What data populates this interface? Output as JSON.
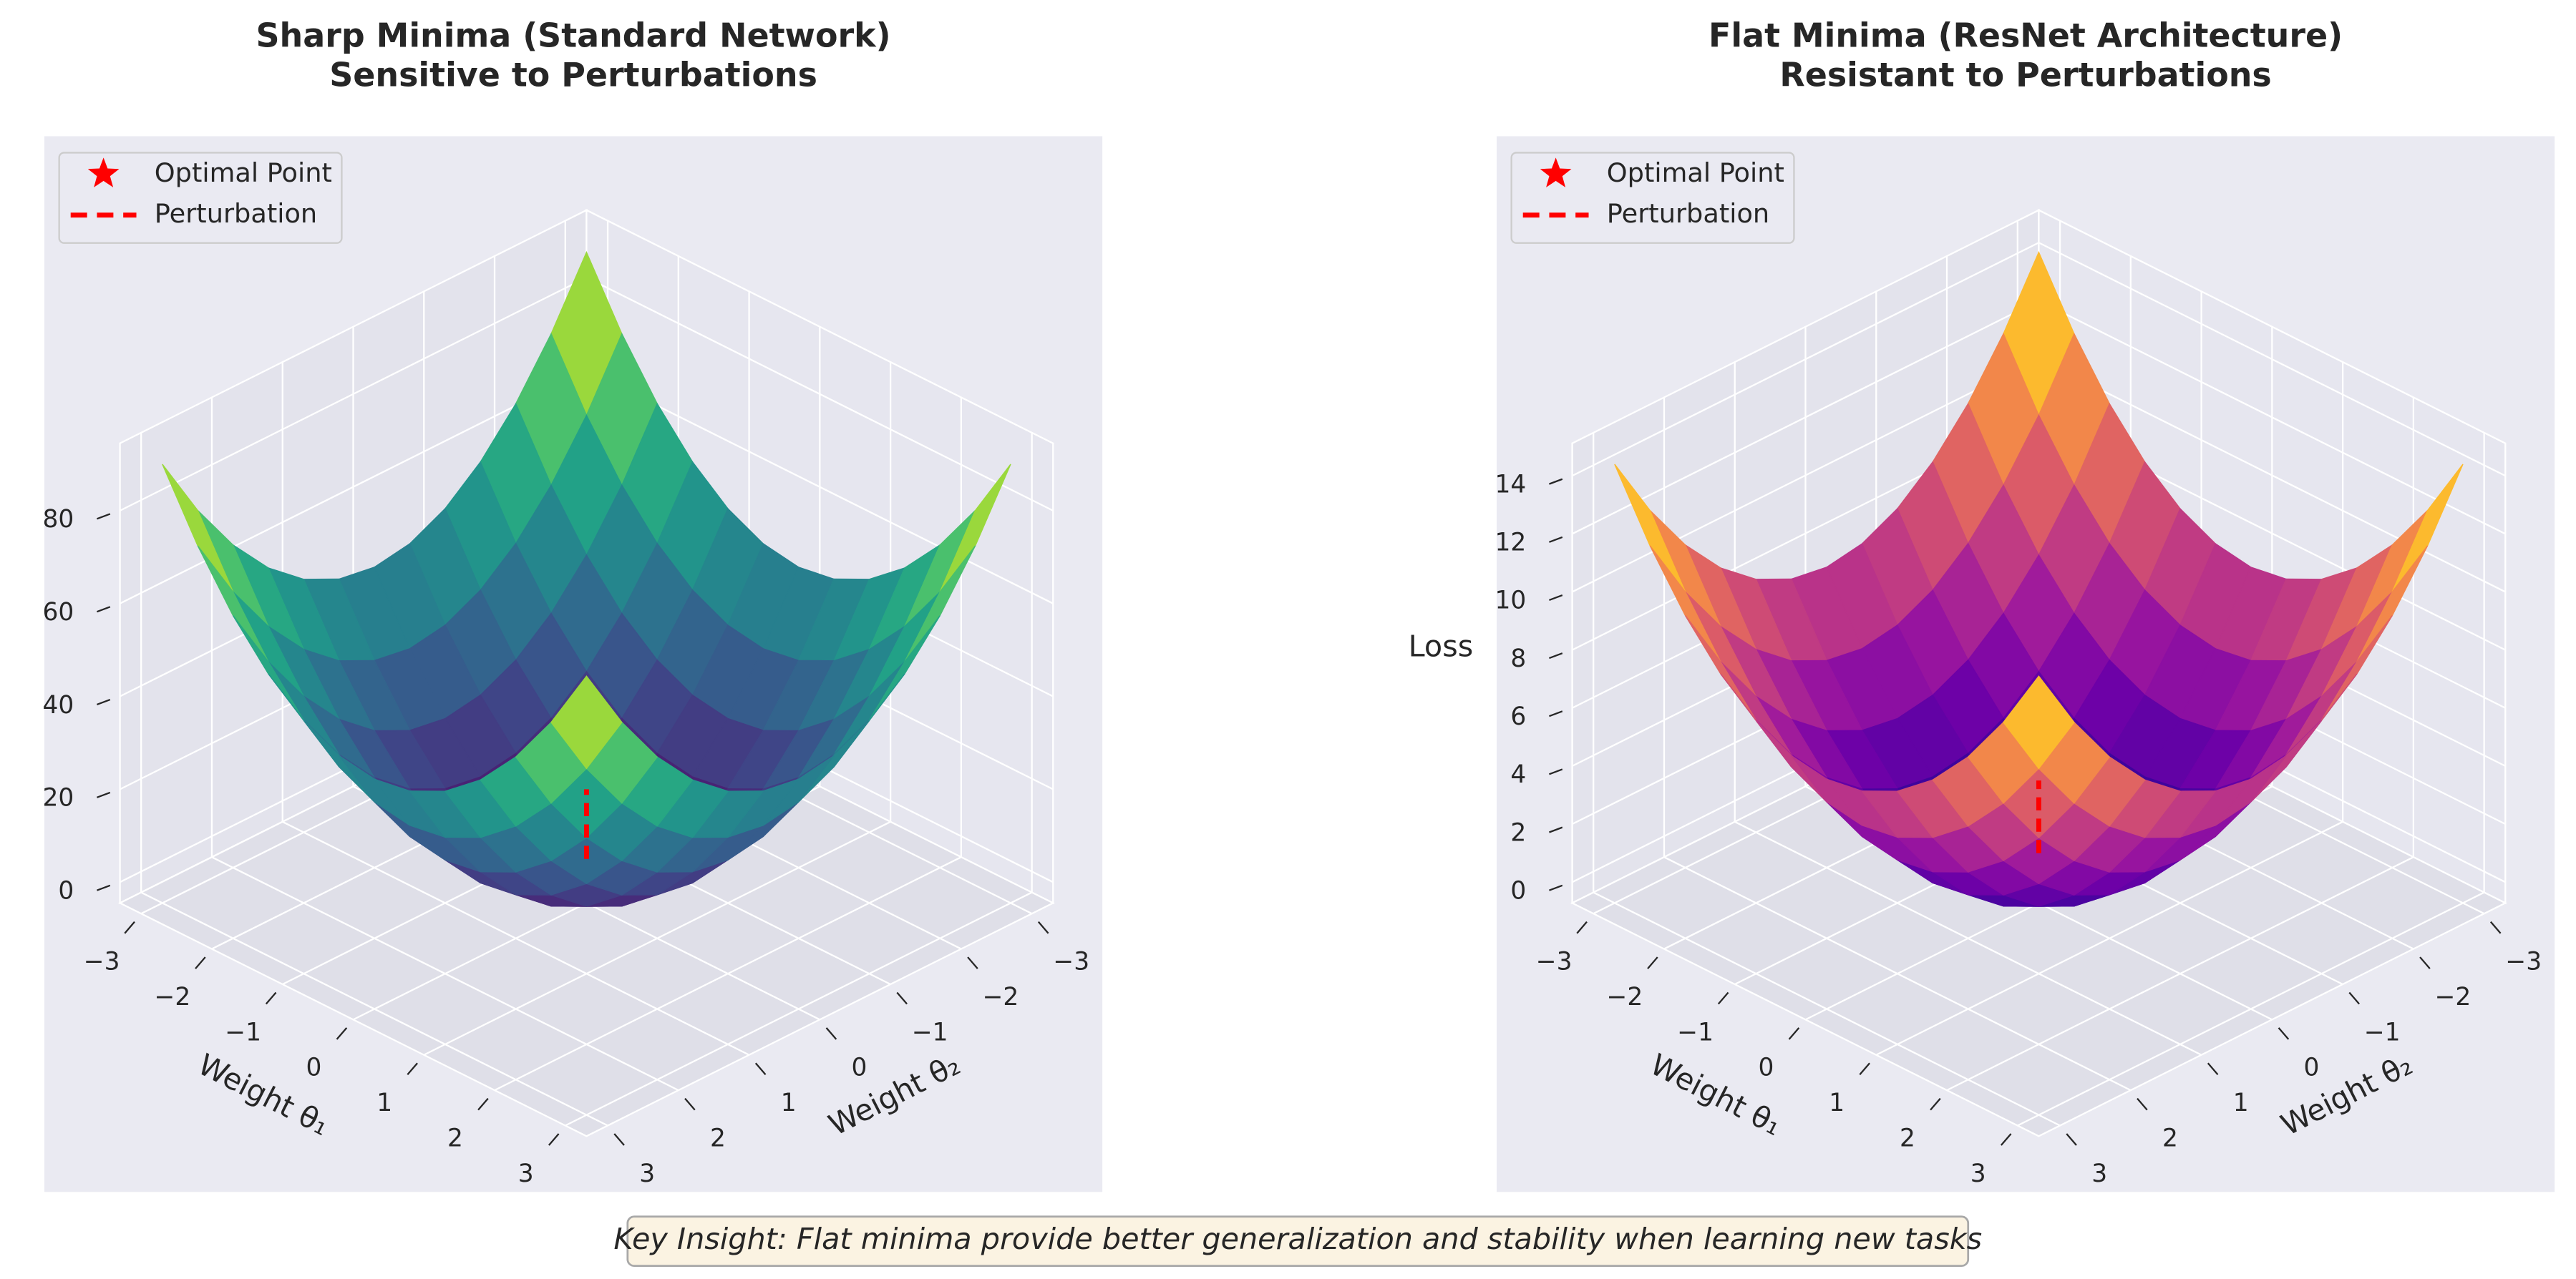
{
  "chart_data": [
    {
      "type": "surface",
      "colormap": "viridis",
      "title": [
        "Sharp Minima (Standard Network)",
        "Sensitive to Perturbations"
      ],
      "xlabel": "Weight θ₁",
      "ylabel": "Weight θ₂",
      "x": [
        -3,
        -2.5,
        -2,
        -1.5,
        -1,
        -0.5,
        0,
        0.5,
        1,
        1.5,
        2,
        2.5,
        3
      ],
      "y": [
        -3,
        -2.5,
        -2,
        -1.5,
        -1,
        -0.5,
        0,
        0.5,
        1,
        1.5,
        2,
        2.5,
        3
      ],
      "z": [
        [
          90,
          76.25,
          65,
          56.25,
          50,
          46.25,
          45,
          46.25,
          50,
          56.25,
          65,
          76.25,
          90
        ],
        [
          76.25,
          62.5,
          51.25,
          42.5,
          36.25,
          32.5,
          31.25,
          32.5,
          36.25,
          42.5,
          51.25,
          62.5,
          76.25
        ],
        [
          65,
          51.25,
          40,
          31.25,
          25,
          21.25,
          20,
          21.25,
          25,
          31.25,
          40,
          51.25,
          65
        ],
        [
          56.25,
          42.5,
          31.25,
          22.5,
          16.25,
          12.5,
          11.25,
          12.5,
          16.25,
          22.5,
          31.25,
          42.5,
          56.25
        ],
        [
          50,
          36.25,
          25,
          16.25,
          10,
          6.25,
          5,
          6.25,
          10,
          16.25,
          25,
          36.25,
          50
        ],
        [
          46.25,
          32.5,
          21.25,
          12.5,
          6.25,
          2.5,
          1.25,
          2.5,
          6.25,
          12.5,
          21.25,
          32.5,
          46.25
        ],
        [
          45,
          31.25,
          20,
          11.25,
          5,
          1.25,
          0,
          1.25,
          5,
          11.25,
          20,
          31.25,
          45
        ],
        [
          46.25,
          32.5,
          21.25,
          12.5,
          6.25,
          2.5,
          1.25,
          2.5,
          6.25,
          12.5,
          21.25,
          32.5,
          46.25
        ],
        [
          50,
          36.25,
          25,
          16.25,
          10,
          6.25,
          5,
          6.25,
          10,
          16.25,
          25,
          36.25,
          50
        ],
        [
          56.25,
          42.5,
          31.25,
          22.5,
          16.25,
          12.5,
          11.25,
          12.5,
          16.25,
          22.5,
          31.25,
          42.5,
          56.25
        ],
        [
          65,
          51.25,
          40,
          31.25,
          25,
          21.25,
          20,
          21.25,
          25,
          31.25,
          40,
          51.25,
          65
        ],
        [
          76.25,
          62.5,
          51.25,
          42.5,
          36.25,
          32.5,
          31.25,
          32.5,
          36.25,
          42.5,
          51.25,
          62.5,
          76.25
        ],
        [
          90,
          76.25,
          65,
          56.25,
          50,
          46.25,
          45,
          46.25,
          50,
          56.25,
          65,
          76.25,
          90
        ]
      ],
      "series": [
        {
          "name": "Optimal Point",
          "color": "#ff0000",
          "marker": "star",
          "x": [
            0
          ],
          "y": [
            0
          ],
          "z": [
            0
          ]
        },
        {
          "name": "Perturbation",
          "color": "#ff0000",
          "linestyle": "dashed",
          "x": [
            0,
            0
          ],
          "y": [
            0,
            0
          ],
          "z": [
            5,
            20
          ]
        }
      ],
      "legend": "upper left",
      "xlim": [
        -3.3,
        3.3
      ],
      "ylim": [
        -3.3,
        3.3
      ],
      "zlim": [
        -4.5,
        94.5
      ],
      "xticks": [
        {
          "value": -3,
          "label": "−3"
        },
        {
          "value": -2,
          "label": "−2"
        },
        {
          "value": -1,
          "label": "−1"
        },
        0,
        1,
        2,
        3
      ],
      "yticks": [
        {
          "value": -3,
          "label": "−3"
        },
        {
          "value": -2,
          "label": "−2"
        },
        {
          "value": -1,
          "label": "−1"
        },
        0,
        1,
        2,
        3
      ],
      "zticks": [
        0,
        20,
        40,
        60,
        80
      ]
    },
    {
      "type": "surface",
      "colormap": "plasma",
      "title": [
        "Flat Minima (ResNet Architecture)",
        "Resistant to Perturbations"
      ],
      "xlabel": "Weight θ₁",
      "ylabel": "Weight θ₂",
      "zlabel": "Loss",
      "x": [
        -3,
        -2.5,
        -2,
        -1.5,
        -1,
        -0.5,
        0,
        0.5,
        1,
        1.5,
        2,
        2.5,
        3
      ],
      "y": [
        -3,
        -2.5,
        -2,
        -1.5,
        -1,
        -0.5,
        0,
        0.5,
        1,
        1.5,
        2,
        2.5,
        3
      ],
      "z": [
        [
          14.4,
          12.2,
          10.4,
          9,
          8,
          7.4,
          7.2,
          7.4,
          8,
          9,
          10.4,
          12.2,
          14.4
        ],
        [
          12.2,
          10,
          8.2,
          6.8,
          5.8,
          5.2,
          5,
          5.2,
          5.8,
          6.8,
          8.2,
          10,
          12.2
        ],
        [
          10.4,
          8.2,
          6.4,
          5,
          4,
          3.4,
          3.2,
          3.4,
          4,
          5,
          6.4,
          8.2,
          10.4
        ],
        [
          9,
          6.8,
          5,
          3.6,
          2.6,
          2,
          1.8,
          2,
          2.6,
          3.6,
          5,
          6.8,
          9
        ],
        [
          8,
          5.8,
          4,
          2.6,
          1.6,
          1,
          0.8,
          1,
          1.6,
          2.6,
          4,
          5.8,
          8
        ],
        [
          7.4,
          5.2,
          3.4,
          2,
          1,
          0.4,
          0.2,
          0.4,
          1,
          2,
          3.4,
          5.2,
          7.4
        ],
        [
          7.2,
          5,
          3.2,
          1.8,
          0.8,
          0.2,
          0,
          0.2,
          0.8,
          1.8,
          3.2,
          5,
          7.2
        ],
        [
          7.4,
          5.2,
          3.4,
          2,
          1,
          0.4,
          0.2,
          0.4,
          1,
          2,
          3.4,
          5.2,
          7.4
        ],
        [
          8,
          5.8,
          4,
          2.6,
          1.6,
          1,
          0.8,
          1,
          1.6,
          2.6,
          4,
          5.8,
          8
        ],
        [
          9,
          6.8,
          5,
          3.6,
          2.6,
          2,
          1.8,
          2,
          2.6,
          3.6,
          5,
          6.8,
          9
        ],
        [
          10.4,
          8.2,
          6.4,
          5,
          4,
          3.4,
          3.2,
          3.4,
          4,
          5,
          6.4,
          8.2,
          10.4
        ],
        [
          12.2,
          10,
          8.2,
          6.8,
          5.8,
          5.2,
          5,
          5.2,
          5.8,
          6.8,
          8.2,
          10,
          12.2
        ],
        [
          14.4,
          12.2,
          10.4,
          9,
          8,
          7.4,
          7.2,
          7.4,
          8,
          9,
          10.4,
          12.2,
          14.4
        ]
      ],
      "series": [
        {
          "name": "Optimal Point",
          "color": "#ff0000",
          "marker": "star",
          "x": [
            0
          ],
          "y": [
            0
          ],
          "z": [
            0
          ]
        },
        {
          "name": "Perturbation",
          "color": "#ff0000",
          "linestyle": "dashed",
          "x": [
            0,
            0
          ],
          "y": [
            0,
            0
          ],
          "z": [
            1,
            3.5
          ]
        }
      ],
      "legend": "upper left",
      "xlim": [
        -3.3,
        3.3
      ],
      "ylim": [
        -3.3,
        3.3
      ],
      "zlim": [
        -0.72,
        15.12
      ],
      "xticks": [
        {
          "value": -3,
          "label": "−3"
        },
        {
          "value": -2,
          "label": "−2"
        },
        {
          "value": -1,
          "label": "−1"
        },
        0,
        1,
        2,
        3
      ],
      "yticks": [
        {
          "value": -3,
          "label": "−3"
        },
        {
          "value": -2,
          "label": "−2"
        },
        {
          "value": -1,
          "label": "−1"
        },
        0,
        1,
        2,
        3
      ],
      "zticks": [
        0,
        2,
        4,
        6,
        8,
        10,
        12,
        14
      ]
    }
  ],
  "footer": "Key Insight: Flat minima provide better generalization and stability when learning new tasks"
}
